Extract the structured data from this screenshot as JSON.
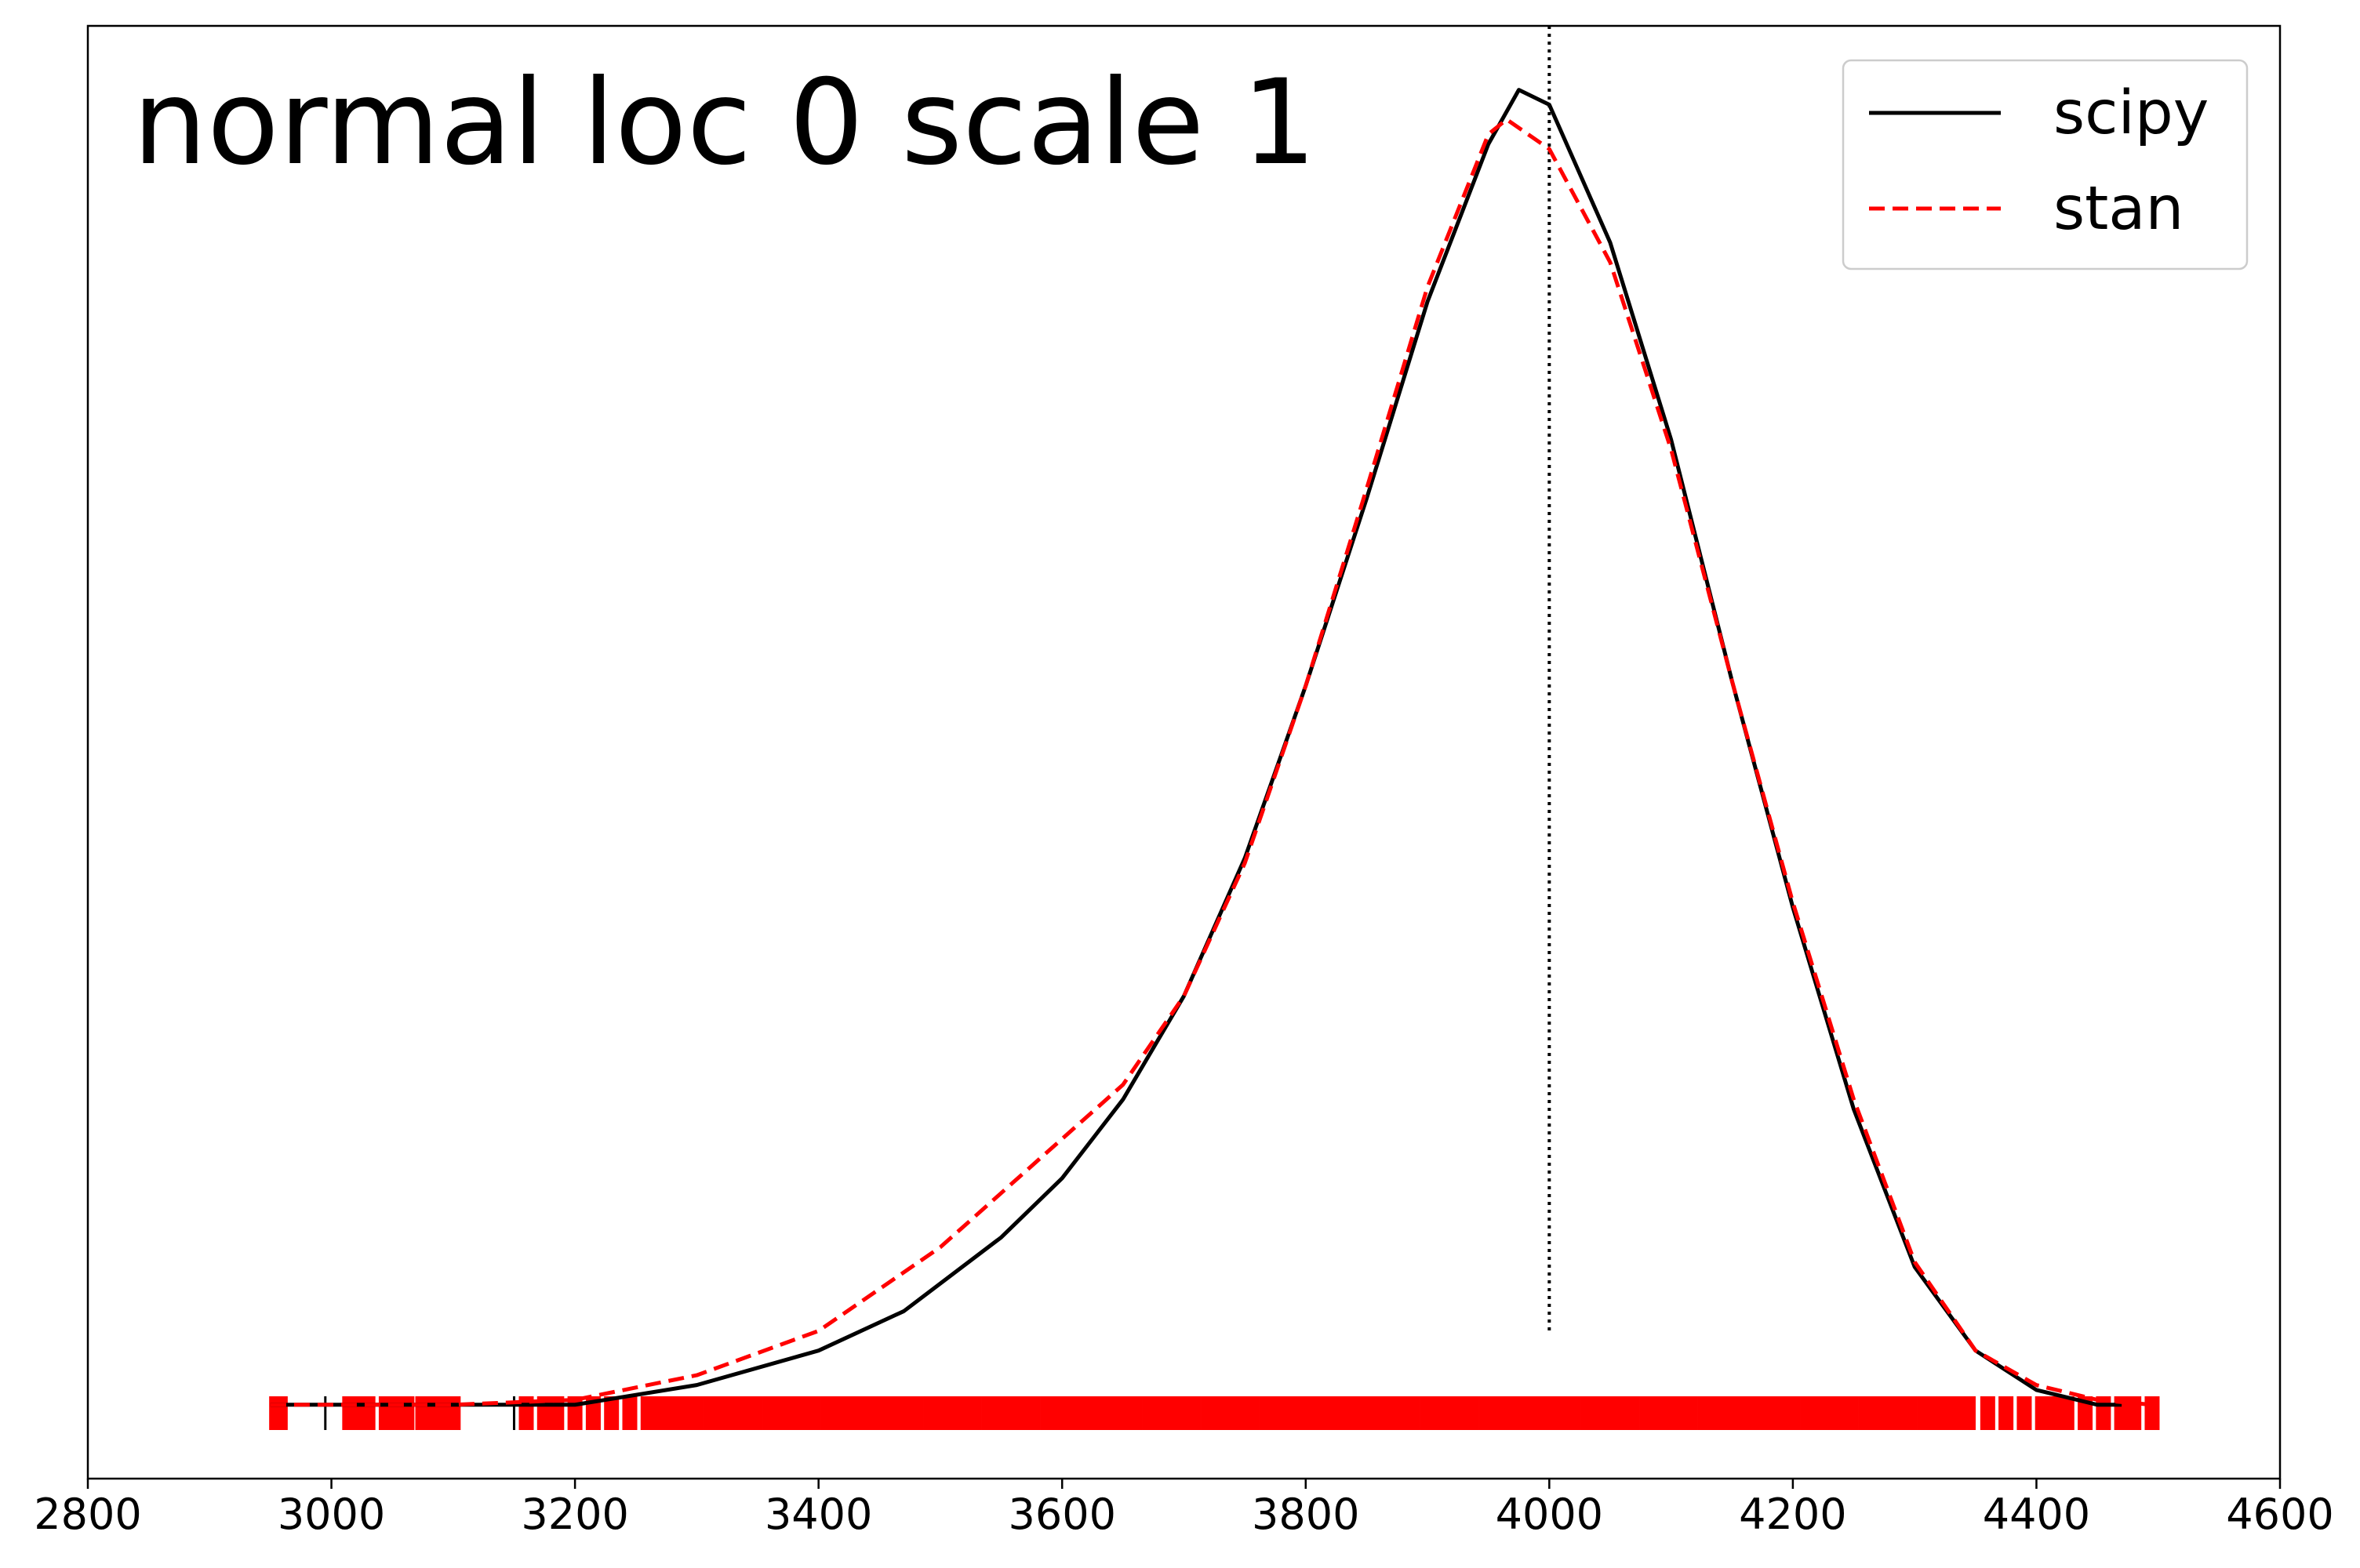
{
  "chart_data": {
    "type": "line",
    "title": "normal loc 0 scale 1",
    "xlim": [
      2800,
      4600
    ],
    "xticks": [
      2800,
      3000,
      3200,
      3400,
      3600,
      3800,
      4000,
      4200,
      4400,
      4600
    ],
    "ylim": [
      -0.00015,
      0.0028
    ],
    "legend": "upper right",
    "vline": {
      "x": 4000,
      "ymin": 0.00015,
      "color": "#000000"
    },
    "series": [
      {
        "name": "scipy",
        "color": "#000000",
        "dash": "solid",
        "x": [
          2950,
          3100,
          3200,
          3300,
          3400,
          3470,
          3550,
          3600,
          3650,
          3700,
          3750,
          3800,
          3850,
          3900,
          3950,
          3975,
          4000,
          4050,
          4100,
          4150,
          4200,
          4250,
          4300,
          4350,
          4400,
          4450,
          4470
        ],
        "values": [
          0,
          0,
          0,
          4e-05,
          0.00011,
          0.00019,
          0.00034,
          0.00046,
          0.00062,
          0.00083,
          0.00111,
          0.00146,
          0.00184,
          0.00224,
          0.00256,
          0.00267,
          0.00264,
          0.00236,
          0.00196,
          0.00147,
          0.00101,
          0.0006,
          0.00028,
          0.00011,
          3e-05,
          0,
          0
        ],
        "rug": [
          2955,
          2995,
          3150,
          3155,
          3160,
          3170,
          3180,
          3200,
          3210,
          3220,
          3235,
          3250,
          3265,
          3270,
          3275,
          3285,
          3300,
          3310,
          3320,
          3330,
          3345,
          3360,
          3380,
          3420,
          3460,
          3520,
          3590,
          4360,
          4370,
          4375,
          4385,
          4395,
          4410,
          4420,
          4440,
          4450,
          4460,
          4465,
          4470
        ]
      },
      {
        "name": "stan",
        "color": "#ff0000",
        "dash": "dashed",
        "x": [
          2950,
          3100,
          3200,
          3300,
          3400,
          3500,
          3600,
          3650,
          3700,
          3750,
          3800,
          3850,
          3900,
          3950,
          3965,
          4000,
          4050,
          4100,
          4150,
          4200,
          4250,
          4300,
          4350,
          4400,
          4450,
          4495
        ],
        "values": [
          0,
          0,
          1e-05,
          6e-05,
          0.00015,
          0.00032,
          0.00054,
          0.00065,
          0.00083,
          0.0011,
          0.00146,
          0.00186,
          0.00227,
          0.00258,
          0.00261,
          0.00255,
          0.00232,
          0.00194,
          0.00147,
          0.00102,
          0.00062,
          0.00029,
          0.00011,
          4e-05,
          1e-05,
          0
        ],
        "rug": [
          2955,
          2958,
          3015,
          3020,
          3030,
          3045,
          3055,
          3062,
          3075,
          3085,
          3090,
          3100,
          3160,
          3175,
          3185,
          3200,
          3215,
          3230,
          3245,
          3260,
          3270,
          3280,
          3290,
          3300,
          3312,
          3324,
          3336,
          3348,
          3360,
          3372,
          3384,
          3396,
          3408,
          3420,
          3432,
          3444,
          3456,
          3468,
          3480,
          3492,
          3504,
          3516,
          3528,
          3540,
          3552,
          3564,
          3576,
          3588,
          3600,
          3612,
          3624,
          3636,
          3648,
          3660,
          3672,
          3684,
          3696,
          3708,
          3720,
          3732,
          3744,
          3756,
          3768,
          3780,
          3792,
          3804,
          3816,
          3828,
          3840,
          3852,
          3864,
          3876,
          3888,
          3900,
          3912,
          3924,
          3936,
          3948,
          3960,
          3972,
          3984,
          3996,
          4008,
          4020,
          4032,
          4044,
          4056,
          4068,
          4080,
          4092,
          4104,
          4116,
          4128,
          4140,
          4152,
          4164,
          4176,
          4188,
          4200,
          4212,
          4224,
          4236,
          4248,
          4260,
          4272,
          4284,
          4296,
          4308,
          4320,
          4332,
          4344,
          4360,
          4375,
          4390,
          4405,
          4415,
          4425,
          4440,
          4455,
          4470,
          4480,
          4495
        ]
      }
    ]
  }
}
